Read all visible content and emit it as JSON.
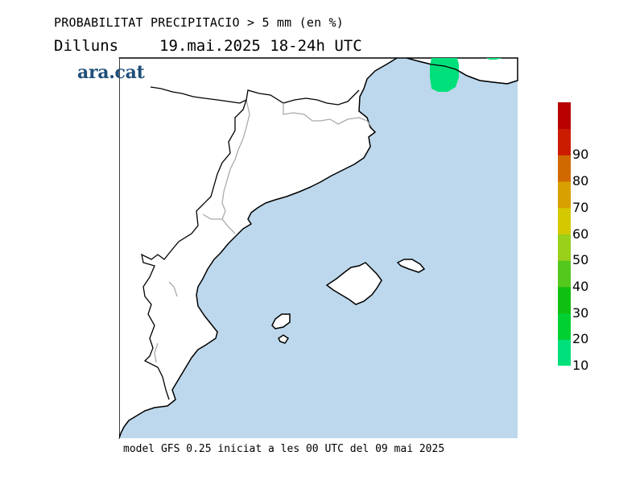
{
  "header": {
    "title": "PROBABILITAT PRECIPITACIO > 5 mm (en %)",
    "day": "Dilluns",
    "datetime": "19.mai.2025 18-24h UTC"
  },
  "brand": {
    "logo_text": "ara.cat"
  },
  "footer": {
    "text": "model GFS 0.25 iniciat a les 00 UTC del 09 mai 2025"
  },
  "colors": {
    "sea": "#bdd8ec",
    "land": "#ffffff",
    "coast": "#000000",
    "border": "#aaaaaa"
  },
  "legend": {
    "bins": [
      {
        "from": 10,
        "to": 20,
        "color": "#00e07a"
      },
      {
        "from": 20,
        "to": 30,
        "color": "#00d032"
      },
      {
        "from": 30,
        "to": 40,
        "color": "#10c010"
      },
      {
        "from": 40,
        "to": 50,
        "color": "#55c81e"
      },
      {
        "from": 50,
        "to": 60,
        "color": "#99d01a"
      },
      {
        "from": 60,
        "to": 70,
        "color": "#d4c800"
      },
      {
        "from": 70,
        "to": 80,
        "color": "#d8a000"
      },
      {
        "from": 80,
        "to": 90,
        "color": "#d06a00"
      },
      {
        "from": 90,
        "to": 100,
        "color": "#cc1c00"
      },
      {
        "from": 100,
        "to": null,
        "color": "#b80000"
      }
    ],
    "ticks": [
      "10",
      "20",
      "30",
      "40",
      "50",
      "60",
      "70",
      "80",
      "90"
    ]
  }
}
